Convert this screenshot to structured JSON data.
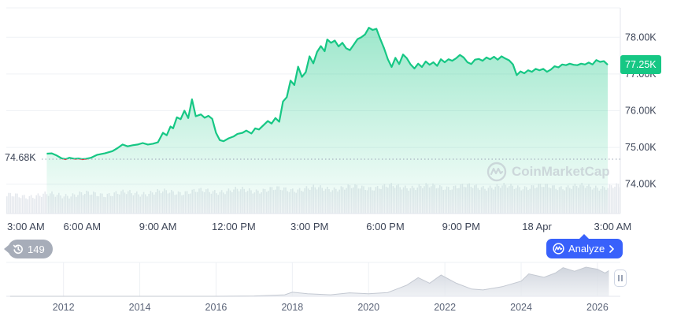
{
  "colors": {
    "up": "#16c784",
    "down": "#ea3943",
    "accent": "#3861fb",
    "grid": "#eff2f5",
    "muted": "#a7adb9"
  },
  "price_badge": "77.25K",
  "start_badge": "74.68K",
  "watermark": "CoinMarketCap",
  "history_count": "149",
  "analyze_label": "Analyze",
  "icons": {
    "history": "history-icon",
    "analyze": "coinmarketcap-logo-icon",
    "chevron": "chevron-right-icon",
    "watermark": "coinmarketcap-logo-icon",
    "handle": "pause-handle-icon"
  },
  "chart_data": [
    {
      "type": "area",
      "y_axis_side": "right",
      "ylim": [
        73.2,
        78.8
      ],
      "yticks": [
        {
          "value": 78.0,
          "label": "78.00K"
        },
        {
          "value": 77.0,
          "label": "77.00K"
        },
        {
          "value": 76.0,
          "label": "76.00K"
        },
        {
          "value": 75.0,
          "label": "75.00K"
        },
        {
          "value": 74.0,
          "label": "74.00K"
        }
      ],
      "xlim": [
        3.0,
        27.3
      ],
      "xticks": [
        {
          "t": 3,
          "label": "3:00 AM"
        },
        {
          "t": 6,
          "label": "6:00 AM"
        },
        {
          "t": 9,
          "label": "9:00 AM"
        },
        {
          "t": 12,
          "label": "12:00 PM"
        },
        {
          "t": 15,
          "label": "3:00 PM"
        },
        {
          "t": 18,
          "label": "6:00 PM"
        },
        {
          "t": 21,
          "label": "9:00 PM"
        },
        {
          "t": 24,
          "label": "18 Apr"
        },
        {
          "t": 27,
          "label": "3:00 AM"
        }
      ],
      "reference_line": 74.68,
      "last_price": 77.25,
      "series": [
        {
          "points": [
            [
              4.6,
              74.83
            ],
            [
              4.8,
              74.84
            ],
            [
              5.0,
              74.78
            ],
            [
              5.2,
              74.7
            ],
            [
              5.35,
              74.68
            ],
            [
              5.5,
              74.72
            ],
            [
              5.7,
              74.69
            ],
            [
              5.85,
              74.7
            ],
            [
              6.0,
              74.68
            ],
            [
              6.15,
              74.69
            ],
            [
              6.35,
              74.72
            ],
            [
              6.6,
              74.8
            ],
            [
              6.9,
              74.84
            ],
            [
              7.2,
              74.9
            ],
            [
              7.4,
              74.98
            ],
            [
              7.6,
              75.08
            ],
            [
              7.8,
              75.03
            ],
            [
              8.0,
              75.06
            ],
            [
              8.2,
              75.08
            ],
            [
              8.4,
              75.12
            ],
            [
              8.6,
              75.08
            ],
            [
              8.8,
              75.1
            ],
            [
              9.0,
              75.14
            ],
            [
              9.2,
              75.4
            ],
            [
              9.35,
              75.33
            ],
            [
              9.5,
              75.57
            ],
            [
              9.6,
              75.52
            ],
            [
              9.75,
              75.82
            ],
            [
              9.9,
              75.77
            ],
            [
              10.05,
              76.0
            ],
            [
              10.2,
              75.8
            ],
            [
              10.35,
              76.31
            ],
            [
              10.5,
              75.85
            ],
            [
              10.7,
              75.9
            ],
            [
              10.85,
              75.81
            ],
            [
              11.0,
              75.86
            ],
            [
              11.15,
              75.78
            ],
            [
              11.3,
              75.4
            ],
            [
              11.45,
              75.2
            ],
            [
              11.6,
              75.17
            ],
            [
              11.8,
              75.25
            ],
            [
              12.0,
              75.3
            ],
            [
              12.15,
              75.37
            ],
            [
              12.35,
              75.4
            ],
            [
              12.5,
              75.46
            ],
            [
              12.7,
              75.38
            ],
            [
              12.85,
              75.52
            ],
            [
              13.0,
              75.49
            ],
            [
              13.2,
              75.62
            ],
            [
              13.35,
              75.72
            ],
            [
              13.5,
              75.65
            ],
            [
              13.65,
              75.8
            ],
            [
              13.8,
              75.7
            ],
            [
              13.95,
              76.25
            ],
            [
              14.1,
              76.37
            ],
            [
              14.25,
              76.82
            ],
            [
              14.4,
              76.7
            ],
            [
              14.55,
              77.2
            ],
            [
              14.7,
              76.92
            ],
            [
              14.85,
              77.05
            ],
            [
              15.0,
              77.48
            ],
            [
              15.15,
              77.29
            ],
            [
              15.3,
              77.6
            ],
            [
              15.45,
              77.76
            ],
            [
              15.6,
              77.62
            ],
            [
              15.7,
              77.94
            ],
            [
              15.85,
              77.85
            ],
            [
              16.0,
              77.91
            ],
            [
              16.15,
              77.75
            ],
            [
              16.3,
              77.85
            ],
            [
              16.45,
              77.7
            ],
            [
              16.6,
              77.65
            ],
            [
              16.75,
              77.8
            ],
            [
              16.9,
              77.95
            ],
            [
              17.05,
              78.0
            ],
            [
              17.2,
              78.08
            ],
            [
              17.35,
              78.26
            ],
            [
              17.5,
              78.2
            ],
            [
              17.65,
              78.23
            ],
            [
              17.8,
              77.95
            ],
            [
              17.95,
              77.7
            ],
            [
              18.1,
              77.4
            ],
            [
              18.25,
              77.19
            ],
            [
              18.4,
              77.44
            ],
            [
              18.55,
              77.27
            ],
            [
              18.7,
              77.53
            ],
            [
              18.85,
              77.43
            ],
            [
              19.0,
              77.26
            ],
            [
              19.15,
              77.15
            ],
            [
              19.3,
              77.28
            ],
            [
              19.45,
              77.19
            ],
            [
              19.6,
              77.34
            ],
            [
              19.75,
              77.25
            ],
            [
              19.9,
              77.32
            ],
            [
              20.05,
              77.22
            ],
            [
              20.2,
              77.4
            ],
            [
              20.35,
              77.32
            ],
            [
              20.5,
              77.4
            ],
            [
              20.65,
              77.36
            ],
            [
              20.8,
              77.43
            ],
            [
              20.95,
              77.52
            ],
            [
              21.1,
              77.45
            ],
            [
              21.25,
              77.32
            ],
            [
              21.4,
              77.27
            ],
            [
              21.55,
              77.39
            ],
            [
              21.7,
              77.41
            ],
            [
              21.85,
              77.36
            ],
            [
              22.0,
              77.45
            ],
            [
              22.15,
              77.4
            ],
            [
              22.3,
              77.47
            ],
            [
              22.45,
              77.39
            ],
            [
              22.6,
              77.48
            ],
            [
              22.75,
              77.42
            ],
            [
              22.9,
              77.37
            ],
            [
              23.05,
              77.26
            ],
            [
              23.2,
              76.97
            ],
            [
              23.35,
              77.07
            ],
            [
              23.5,
              77.02
            ],
            [
              23.65,
              77.1
            ],
            [
              23.8,
              77.06
            ],
            [
              23.95,
              77.14
            ],
            [
              24.1,
              77.1
            ],
            [
              24.25,
              77.14
            ],
            [
              24.4,
              77.06
            ],
            [
              24.55,
              77.12
            ],
            [
              24.7,
              77.21
            ],
            [
              24.85,
              77.18
            ],
            [
              25.0,
              77.26
            ],
            [
              25.15,
              77.24
            ],
            [
              25.3,
              77.28
            ],
            [
              25.45,
              77.25
            ],
            [
              25.6,
              77.24
            ],
            [
              25.75,
              77.28
            ],
            [
              25.9,
              77.26
            ],
            [
              26.05,
              77.31
            ],
            [
              26.2,
              77.26
            ],
            [
              26.35,
              77.38
            ],
            [
              26.5,
              77.33
            ],
            [
              26.65,
              77.35
            ],
            [
              26.8,
              77.25
            ]
          ]
        }
      ]
    },
    {
      "type": "area",
      "role": "navigator",
      "xlim": [
        2010.5,
        2026.6
      ],
      "xticks": [
        2012,
        2014,
        2016,
        2018,
        2020,
        2022,
        2024,
        2026
      ],
      "series": [
        {
          "points": [
            [
              2010.6,
              0.0
            ],
            [
              2016.0,
              0.0
            ],
            [
              2017.0,
              0.01
            ],
            [
              2017.8,
              0.05
            ],
            [
              2018.0,
              0.14
            ],
            [
              2018.4,
              0.09
            ],
            [
              2019.0,
              0.05
            ],
            [
              2019.5,
              0.12
            ],
            [
              2020.0,
              0.09
            ],
            [
              2020.5,
              0.13
            ],
            [
              2021.0,
              0.38
            ],
            [
              2021.3,
              0.64
            ],
            [
              2021.6,
              0.45
            ],
            [
              2021.9,
              0.73
            ],
            [
              2022.3,
              0.45
            ],
            [
              2022.7,
              0.25
            ],
            [
              2023.0,
              0.22
            ],
            [
              2023.5,
              0.33
            ],
            [
              2024.0,
              0.52
            ],
            [
              2024.2,
              0.77
            ],
            [
              2024.6,
              0.65
            ],
            [
              2024.9,
              0.8
            ],
            [
              2025.1,
              0.98
            ],
            [
              2025.4,
              0.86
            ],
            [
              2025.7,
              1.0
            ],
            [
              2026.0,
              0.93
            ],
            [
              2026.2,
              0.8
            ],
            [
              2026.3,
              0.88
            ]
          ]
        }
      ]
    }
  ]
}
